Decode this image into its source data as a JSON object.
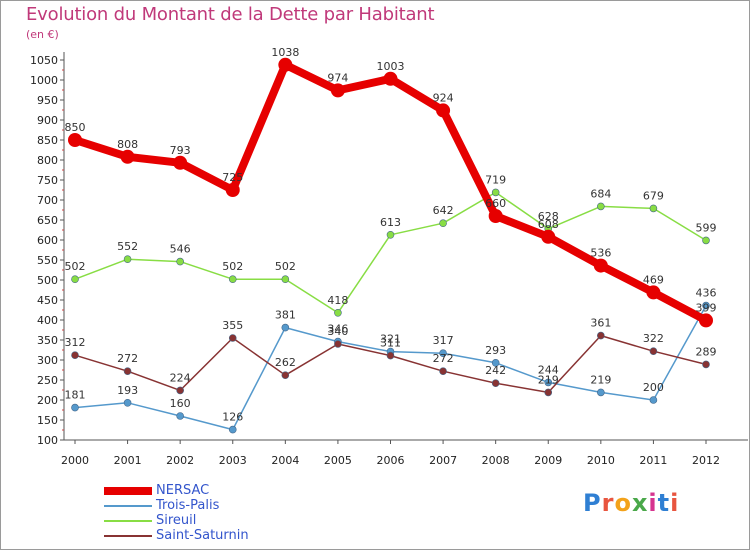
{
  "title": "Evolution du Montant de la Dette par Habitant",
  "unit": "(en €)",
  "logo": {
    "text": "Proxiti",
    "colors": [
      "#2f7fd3",
      "#e8553f",
      "#f3a21a",
      "#4aa84a",
      "#d6348f",
      "#2f7fd3",
      "#e8553f"
    ]
  },
  "chart_data": {
    "type": "line",
    "x": [
      "2000",
      "2001",
      "2002",
      "2003",
      "2004",
      "2005",
      "2006",
      "2007",
      "2008",
      "2009",
      "2010",
      "2011",
      "2012"
    ],
    "ylim": [
      100,
      1050
    ],
    "yticks": [
      100,
      150,
      200,
      250,
      300,
      350,
      400,
      450,
      500,
      550,
      600,
      650,
      700,
      750,
      800,
      850,
      900,
      950,
      1000,
      1050
    ],
    "grid": false,
    "legend_position": "bottom-left",
    "series": [
      {
        "name": "NERSAC",
        "color": "#e60000",
        "width": 8,
        "marker": 7,
        "values": [
          850,
          808,
          793,
          725,
          1038,
          974,
          1003,
          924,
          660,
          608,
          536,
          469,
          399
        ],
        "labels": [
          "850",
          "808",
          "793",
          "725",
          "1038",
          "974",
          "1003",
          "924",
          "660",
          "608",
          "536",
          "469",
          "399"
        ]
      },
      {
        "name": "Trois-Palis",
        "color": "#5599cc",
        "width": 1.5,
        "marker": 3.5,
        "values": [
          181,
          193,
          160,
          126,
          381,
          346,
          321,
          317,
          293,
          244,
          219,
          200,
          436
        ],
        "labels": [
          "181",
          "193",
          "160",
          "126",
          "381",
          "346",
          "321",
          "317",
          "293",
          "244",
          "219",
          "200",
          "436"
        ]
      },
      {
        "name": "Sireuil",
        "color": "#88dd44",
        "width": 1.5,
        "marker": 3.5,
        "values": [
          502,
          552,
          546,
          502,
          502,
          418,
          613,
          642,
          719,
          628,
          684,
          679,
          599
        ],
        "labels": [
          "502",
          "552",
          "546",
          "502",
          "502",
          "418",
          "613",
          "642",
          "719",
          "628",
          "684",
          "679",
          "599"
        ]
      },
      {
        "name": "Saint-Saturnin",
        "color": "#883333",
        "width": 1.5,
        "marker": 3.5,
        "values": [
          312,
          272,
          224,
          355,
          262,
          340,
          311,
          272,
          242,
          219,
          361,
          322,
          289
        ],
        "labels": [
          "312",
          "272",
          "224",
          "355",
          "262",
          "340",
          "311",
          "272",
          "242",
          "219",
          "361",
          "322",
          "289"
        ]
      }
    ]
  }
}
